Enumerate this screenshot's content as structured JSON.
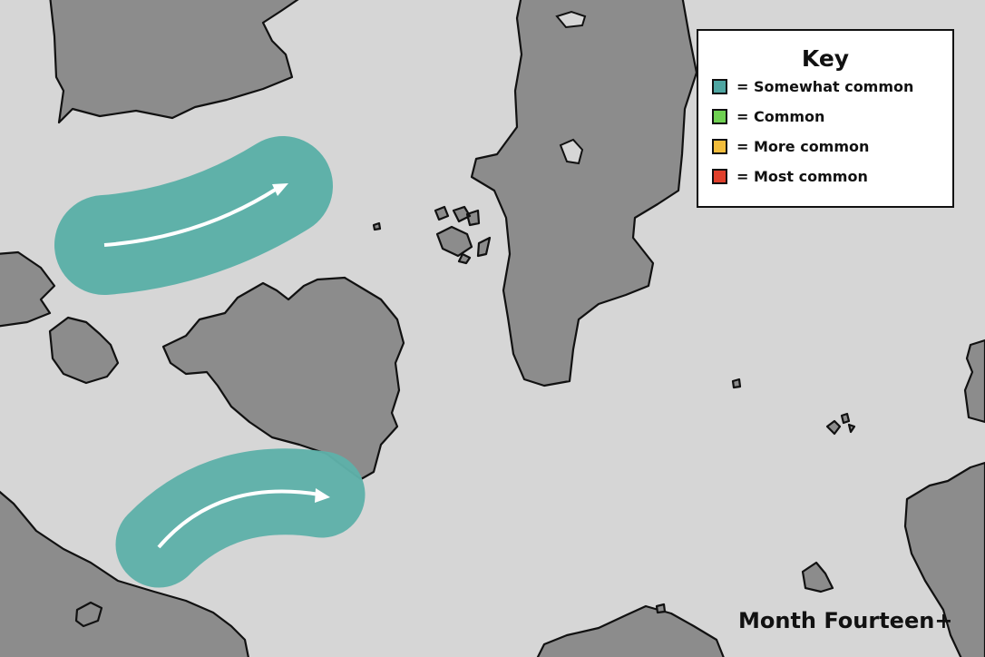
{
  "map": {
    "title": "Month Fourteen+",
    "colors": {
      "sea": "#d6d6d6",
      "land": "#8c8c8c",
      "range": "#5fb1a9",
      "arrow": "#ffffff"
    }
  },
  "key": {
    "title": "Key",
    "items": [
      {
        "label": "= Somewhat common",
        "color": "#4fa6a2"
      },
      {
        "label": "= Common",
        "color": "#6fd152"
      },
      {
        "label": "= More common",
        "color": "#f2bd3c"
      },
      {
        "label": "= Most common",
        "color": "#e0402c"
      }
    ]
  }
}
